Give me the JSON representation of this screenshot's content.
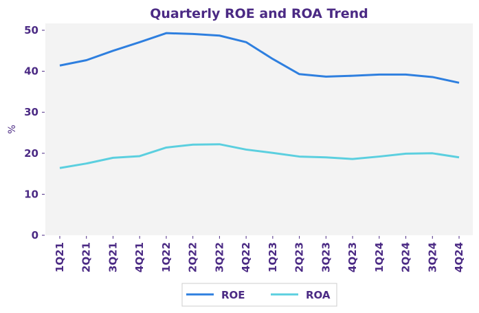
{
  "chart_data": {
    "type": "line",
    "title": "Quarterly ROE and ROA Trend",
    "xlabel": "",
    "ylabel": "%",
    "ylim": [
      0,
      50
    ],
    "yticks": [
      0,
      10,
      20,
      30,
      40,
      50
    ],
    "grid": false,
    "legend_position": "bottom-center",
    "categories": [
      "1Q21",
      "2Q21",
      "3Q21",
      "4Q21",
      "1Q22",
      "2Q22",
      "3Q22",
      "4Q22",
      "1Q23",
      "2Q23",
      "3Q23",
      "4Q23",
      "1Q24",
      "2Q24",
      "3Q24",
      "4Q24"
    ],
    "series": [
      {
        "name": "ROE",
        "color": "#2e7fdf",
        "values": [
          41.4,
          42.7,
          45.0,
          47.1,
          49.3,
          49.1,
          48.7,
          47.1,
          43.0,
          39.3,
          38.7,
          38.9,
          39.2,
          39.2,
          38.6,
          37.2
        ]
      },
      {
        "name": "ROA",
        "color": "#5bcfdf",
        "values": [
          16.4,
          17.5,
          18.9,
          19.3,
          21.4,
          22.1,
          22.2,
          20.9,
          20.1,
          19.2,
          19.0,
          18.6,
          19.2,
          19.9,
          20.0,
          19.0
        ]
      }
    ]
  },
  "colors": {
    "text": "#4b2a84",
    "plot_background": "#f3f3f3",
    "legend_border": "#cccccc"
  }
}
